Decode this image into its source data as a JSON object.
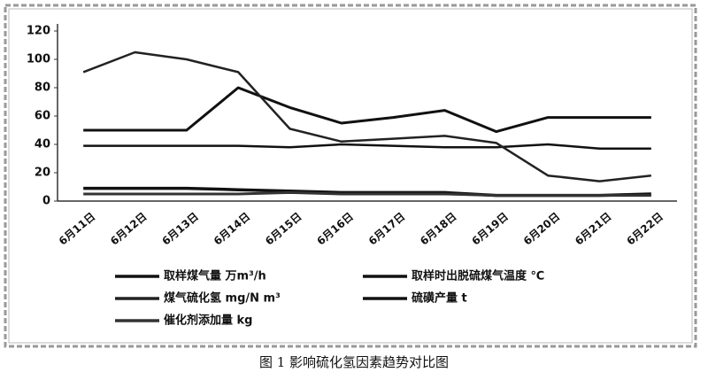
{
  "chart_data": {
    "type": "line",
    "title": "图 1    影响硫化氢因素趋势对比图",
    "categories": [
      "6月11日",
      "6月12日",
      "6月13日",
      "6月14日",
      "6月15日",
      "6月16日",
      "6月17日",
      "6月18日",
      "6月19日",
      "6月20日",
      "6月21日",
      "6月22日"
    ],
    "series": [
      {
        "name": "取样煤气量 万m³/h",
        "color": "#111111",
        "values": [
          39,
          39,
          39,
          39,
          38,
          40,
          39,
          38,
          38,
          40,
          37,
          37
        ]
      },
      {
        "name": "取样时出脱硫煤气温度 ℃",
        "color": "#111111",
        "values": [
          50,
          50,
          50,
          80,
          66,
          55,
          59,
          64,
          49,
          59,
          59,
          59
        ]
      },
      {
        "name": "煤气硫化氢 mg/N m³",
        "color": "#222222",
        "values": [
          91,
          105,
          100,
          91,
          51,
          42,
          44,
          46,
          41,
          18,
          14,
          18
        ]
      },
      {
        "name": "硫磺产量 t",
        "color": "#111111",
        "values": [
          9,
          9,
          9,
          8,
          7,
          6,
          6,
          6,
          4,
          4,
          4,
          5
        ]
      },
      {
        "name": "催化剂添加量 kg",
        "color": "#333333",
        "values": [
          5,
          5,
          5,
          5,
          6,
          5,
          5,
          5,
          4,
          4,
          4,
          4
        ]
      }
    ],
    "ylim": [
      0,
      120
    ],
    "yticks": [
      0,
      20,
      40,
      60,
      80,
      100,
      120
    ],
    "grid": false,
    "legend": "bottom"
  }
}
